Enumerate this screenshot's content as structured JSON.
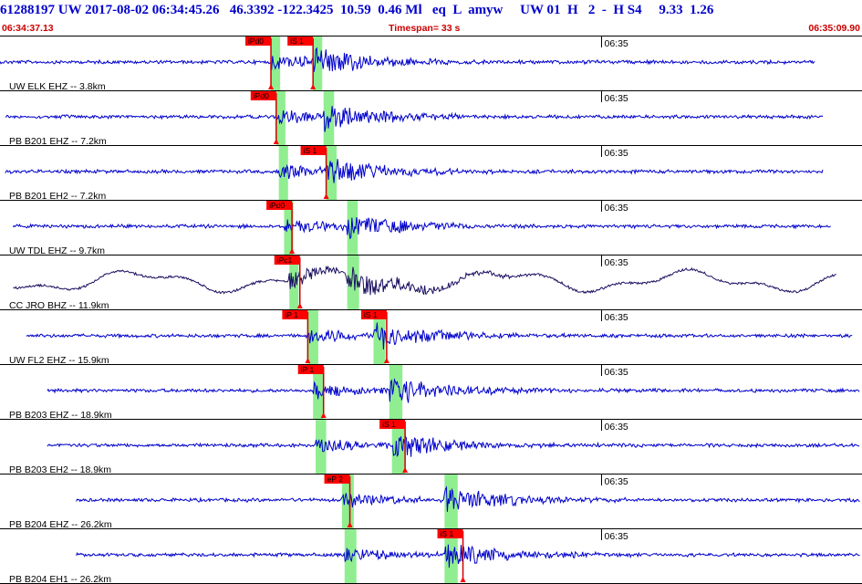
{
  "header": {
    "event_id": "61288197",
    "network": "UW",
    "datetime": "2017-08-02 06:34:45.26",
    "lat": "46.3392",
    "lon": "-122.3425",
    "depth": "10.59",
    "magnitude": "0.46",
    "mag_type": "Ml",
    "event_type": "eq",
    "flag": "L",
    "user": "amyw",
    "source": "UW",
    "version": "01",
    "quality": "H",
    "count": "2",
    "dash": "-",
    "gap_code": "H S4",
    "rms": "9.33",
    "err": "1.26",
    "start_time": "06:34:37.13",
    "timespan_label": "Timespan=",
    "timespan": "33 s",
    "end_time": "06:35:09.90"
  },
  "colors": {
    "header": "#0000cc",
    "subheader": "#cc0000",
    "trace": "#0000cc",
    "trace_alt": "#1a1060",
    "pick_box": "#ff0000",
    "window": "#90ee90"
  },
  "chart_data": {
    "type": "seismogram",
    "x_range_seconds": [
      0,
      32.77
    ],
    "minute_tick_label": "06:35",
    "minute_tick_seconds": 22.87,
    "channels": [
      {
        "label": "UW ELK EHZ -- 3.8km",
        "color": "#0000cc",
        "dist_km": 3.8,
        "data_start": 0.0,
        "data_end": 31.0,
        "picks": [
          {
            "label": "iPd0",
            "t": 10.3
          },
          {
            "label": "iS 1",
            "t": 11.9
          }
        ],
        "windows": [
          {
            "t": 10.3,
            "w": 0.35
          },
          {
            "t": 11.9,
            "w": 0.35
          }
        ]
      },
      {
        "label": "PB B201 EHZ -- 7.2km",
        "color": "#0000cc",
        "dist_km": 7.2,
        "data_start": 0.2,
        "data_end": 31.3,
        "picks": [
          {
            "label": "iPd0",
            "t": 10.5
          }
        ],
        "windows": [
          {
            "t": 10.5,
            "w": 0.35
          },
          {
            "t": 12.3,
            "w": 0.4
          }
        ]
      },
      {
        "label": "PB B201 EH2 -- 7.2km",
        "color": "#0000cc",
        "dist_km": 7.2,
        "data_start": 0.2,
        "data_end": 31.3,
        "picks": [
          {
            "label": "iS 1",
            "t": 12.4
          }
        ],
        "windows": [
          {
            "t": 10.6,
            "w": 0.35
          },
          {
            "t": 12.4,
            "w": 0.4
          }
        ]
      },
      {
        "label": "UW TDL EHZ -- 9.7km",
        "color": "#0000cc",
        "dist_km": 9.7,
        "data_start": 0.5,
        "data_end": 31.6,
        "picks": [
          {
            "label": "iPd0",
            "t": 11.1
          }
        ],
        "windows": [
          {
            "t": 10.8,
            "w": 0.35
          },
          {
            "t": 13.2,
            "w": 0.4
          }
        ]
      },
      {
        "label": "CC JRO BHZ -- 11.9km",
        "color": "#1a1060",
        "dist_km": 11.9,
        "data_start": 0.5,
        "data_end": 31.8,
        "picks": [
          {
            "label": "iPc1",
            "t": 11.4
          }
        ],
        "windows": [
          {
            "t": 11.0,
            "w": 0.35
          },
          {
            "t": 13.2,
            "w": 0.45
          }
        ]
      },
      {
        "label": "UW FL2 EHZ -- 15.9km",
        "color": "#0000cc",
        "dist_km": 15.9,
        "data_start": 1.0,
        "data_end": 32.4,
        "picks": [
          {
            "label": "iP 1",
            "t": 11.7
          },
          {
            "label": "iS 1",
            "t": 14.7
          }
        ],
        "windows": [
          {
            "t": 11.7,
            "w": 0.4
          },
          {
            "t": 14.2,
            "w": 0.45
          }
        ]
      },
      {
        "label": "PB B203 EHZ -- 18.9km",
        "color": "#0000cc",
        "dist_km": 18.9,
        "data_start": 1.8,
        "data_end": 32.7,
        "picks": [
          {
            "label": "iP 1",
            "t": 12.3
          }
        ],
        "windows": [
          {
            "t": 11.9,
            "w": 0.4
          },
          {
            "t": 14.8,
            "w": 0.5
          }
        ]
      },
      {
        "label": "PB B203 EH2 -- 18.9km",
        "color": "#0000cc",
        "dist_km": 18.9,
        "data_start": 1.8,
        "data_end": 32.7,
        "picks": [
          {
            "label": "iS 1",
            "t": 15.4
          }
        ],
        "windows": [
          {
            "t": 12.0,
            "w": 0.4
          },
          {
            "t": 14.9,
            "w": 0.5
          }
        ]
      },
      {
        "label": "PB B204 EHZ -- 26.2km",
        "color": "#0000cc",
        "dist_km": 26.2,
        "data_start": 2.9,
        "data_end": 32.7,
        "picks": [
          {
            "label": "eP 2",
            "t": 13.3
          }
        ],
        "windows": [
          {
            "t": 13.0,
            "w": 0.45
          },
          {
            "t": 16.9,
            "w": 0.5
          }
        ]
      },
      {
        "label": "PB B204 EH1 -- 26.2km",
        "color": "#0000cc",
        "dist_km": 26.2,
        "data_start": 2.9,
        "data_end": 32.7,
        "picks": [
          {
            "label": "iS 1",
            "t": 17.6
          }
        ],
        "windows": [
          {
            "t": 13.1,
            "w": 0.45
          },
          {
            "t": 16.9,
            "w": 0.5
          }
        ]
      }
    ]
  }
}
